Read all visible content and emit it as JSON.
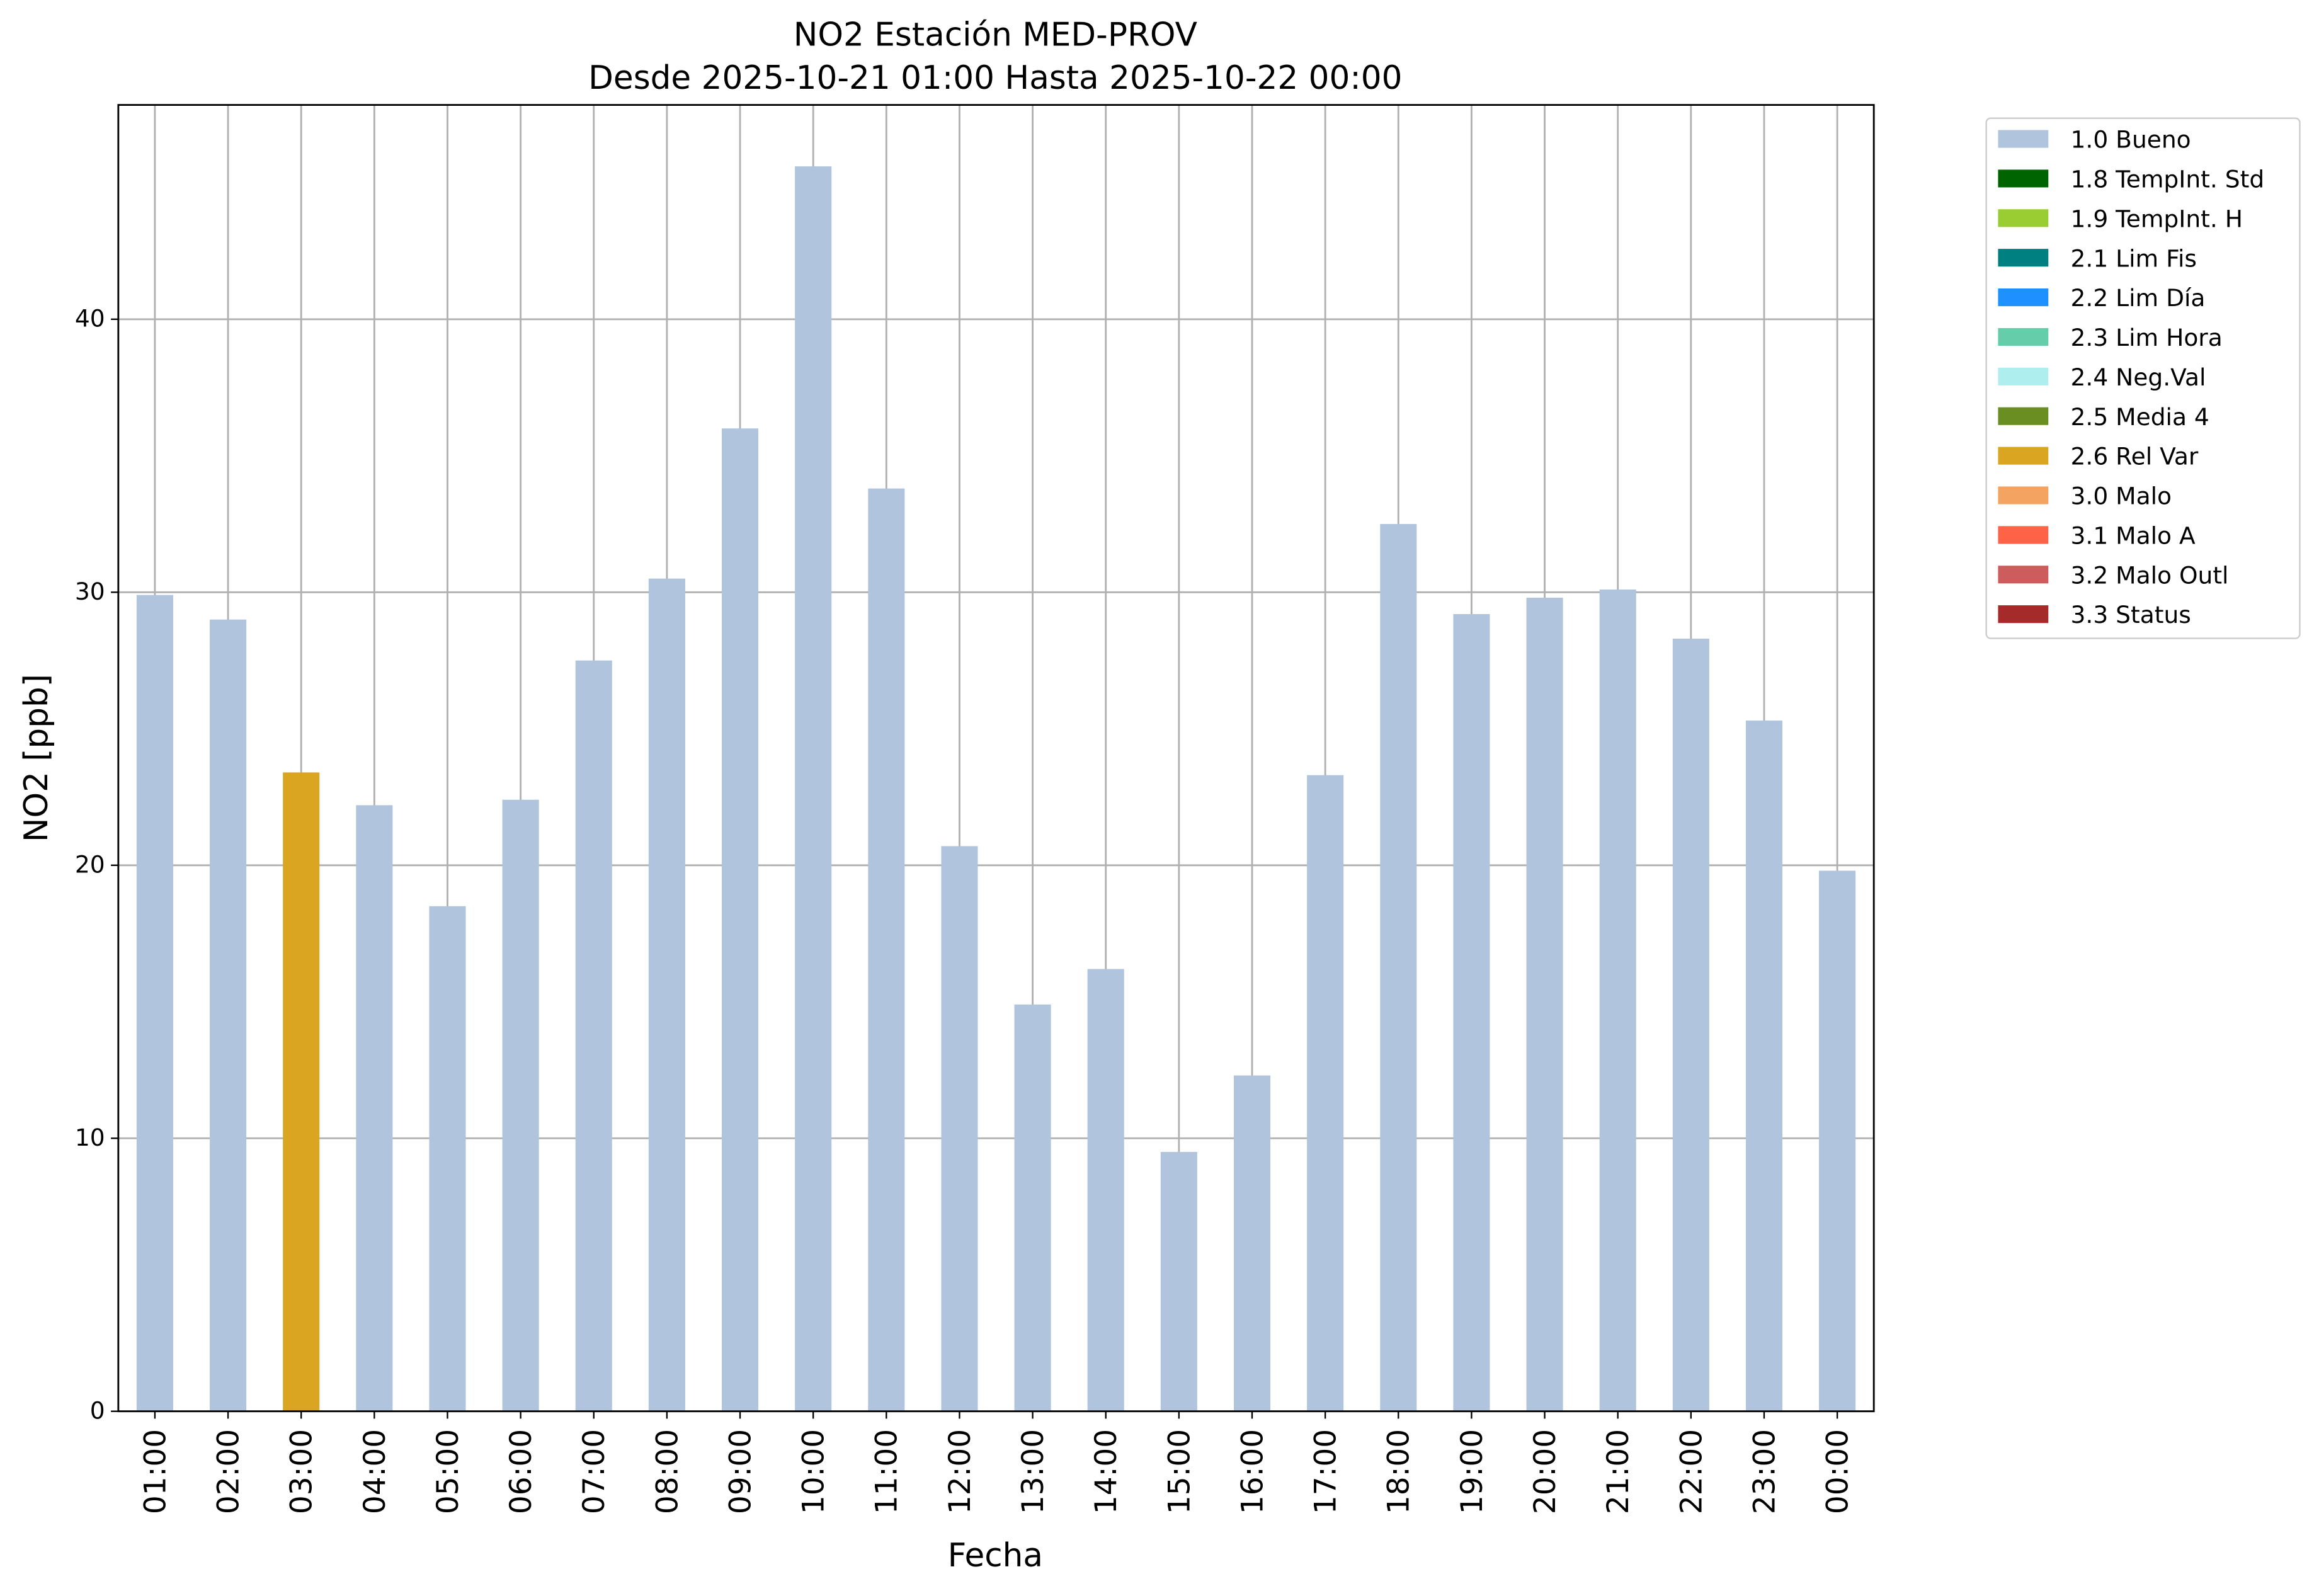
{
  "chart_data": {
    "type": "bar",
    "stacked": true,
    "title": "NO2 Estación MED-PROV",
    "subtitle": "Desde 2025-10-21 01:00 Hasta 2025-10-22 00:00",
    "x_label": "Fecha",
    "y_label": "NO2 [ppb]",
    "categories": [
      "01:00",
      "02:00",
      "03:00",
      "04:00",
      "05:00",
      "06:00",
      "07:00",
      "08:00",
      "09:00",
      "10:00",
      "11:00",
      "12:00",
      "13:00",
      "14:00",
      "15:00",
      "16:00",
      "17:00",
      "18:00",
      "19:00",
      "20:00",
      "21:00",
      "22:00",
      "23:00",
      "00:00"
    ],
    "series": [
      {
        "name": "1.0 Bueno",
        "color": "#b0c4de",
        "values": [
          29.9,
          29.0,
          null,
          22.2,
          18.5,
          22.4,
          27.5,
          30.5,
          36.0,
          45.6,
          33.8,
          20.7,
          14.9,
          16.2,
          9.5,
          12.3,
          23.3,
          32.5,
          29.2,
          29.8,
          30.1,
          28.3,
          25.3,
          19.8
        ]
      },
      {
        "name": "1.8 TempInt. Std",
        "color": "#006400",
        "values": [
          null,
          null,
          null,
          null,
          null,
          null,
          null,
          null,
          null,
          null,
          null,
          null,
          null,
          null,
          null,
          null,
          null,
          null,
          null,
          null,
          null,
          null,
          null,
          null
        ]
      },
      {
        "name": "1.9 TempInt. H",
        "color": "#9acd32",
        "values": [
          null,
          null,
          null,
          null,
          null,
          null,
          null,
          null,
          null,
          null,
          null,
          null,
          null,
          null,
          null,
          null,
          null,
          null,
          null,
          null,
          null,
          null,
          null,
          null
        ]
      },
      {
        "name": "2.1 Lim Fis",
        "color": "#008080",
        "values": [
          null,
          null,
          null,
          null,
          null,
          null,
          null,
          null,
          null,
          null,
          null,
          null,
          null,
          null,
          null,
          null,
          null,
          null,
          null,
          null,
          null,
          null,
          null,
          null
        ]
      },
      {
        "name": "2.2 Lim Día",
        "color": "#1e90ff",
        "values": [
          null,
          null,
          null,
          null,
          null,
          null,
          null,
          null,
          null,
          null,
          null,
          null,
          null,
          null,
          null,
          null,
          null,
          null,
          null,
          null,
          null,
          null,
          null,
          null
        ]
      },
      {
        "name": "2.3 Lim Hora",
        "color": "#66cdaa",
        "values": [
          null,
          null,
          null,
          null,
          null,
          null,
          null,
          null,
          null,
          null,
          null,
          null,
          null,
          null,
          null,
          null,
          null,
          null,
          null,
          null,
          null,
          null,
          null,
          null
        ]
      },
      {
        "name": "2.4 Neg.Val",
        "color": "#afeeee",
        "values": [
          null,
          null,
          null,
          null,
          null,
          null,
          null,
          null,
          null,
          null,
          null,
          null,
          null,
          null,
          null,
          null,
          null,
          null,
          null,
          null,
          null,
          null,
          null,
          null
        ]
      },
      {
        "name": "2.5 Media 4",
        "color": "#6b8e23",
        "values": [
          null,
          null,
          null,
          null,
          null,
          null,
          null,
          null,
          null,
          null,
          null,
          null,
          null,
          null,
          null,
          null,
          null,
          null,
          null,
          null,
          null,
          null,
          null,
          null
        ]
      },
      {
        "name": "2.6 Rel Var",
        "color": "#daa520",
        "values": [
          null,
          null,
          23.4,
          null,
          null,
          null,
          null,
          null,
          null,
          null,
          null,
          null,
          null,
          null,
          null,
          null,
          null,
          null,
          null,
          null,
          null,
          null,
          null,
          null
        ]
      },
      {
        "name": "3.0 Malo",
        "color": "#f4a460",
        "values": [
          null,
          null,
          null,
          null,
          null,
          null,
          null,
          null,
          null,
          null,
          null,
          null,
          null,
          null,
          null,
          null,
          null,
          null,
          null,
          null,
          null,
          null,
          null,
          null
        ]
      },
      {
        "name": "3.1 Malo A",
        "color": "#ff6347",
        "values": [
          null,
          null,
          null,
          null,
          null,
          null,
          null,
          null,
          null,
          null,
          null,
          null,
          null,
          null,
          null,
          null,
          null,
          null,
          null,
          null,
          null,
          null,
          null,
          null
        ]
      },
      {
        "name": "3.2 Malo Outl",
        "color": "#cd5c5c",
        "values": [
          null,
          null,
          null,
          null,
          null,
          null,
          null,
          null,
          null,
          null,
          null,
          null,
          null,
          null,
          null,
          null,
          null,
          null,
          null,
          null,
          null,
          null,
          null,
          null
        ]
      },
      {
        "name": "3.3 Status",
        "color": "#a52a2a",
        "values": [
          null,
          null,
          null,
          null,
          null,
          null,
          null,
          null,
          null,
          null,
          null,
          null,
          null,
          null,
          null,
          null,
          null,
          null,
          null,
          null,
          null,
          null,
          null,
          null
        ]
      }
    ],
    "ylim": [
      0,
      47.85
    ],
    "yticks": [
      0,
      10,
      20,
      30,
      40
    ],
    "grid": true,
    "legend": "outside-right"
  }
}
